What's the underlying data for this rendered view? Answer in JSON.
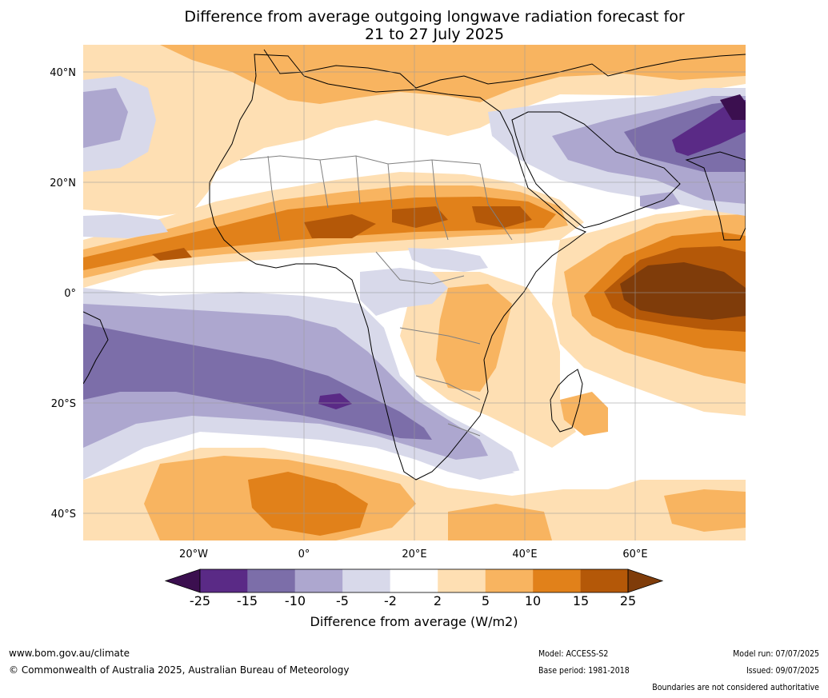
{
  "title_line1": "Difference from average outgoing longwave radiation forecast for",
  "title_line2": "21 to 27 July 2025",
  "lat_ticks": [
    "40°N",
    "20°N",
    "0°",
    "20°S",
    "40°S"
  ],
  "lon_ticks": [
    "20°W",
    "0°",
    "20°E",
    "40°E",
    "60°E"
  ],
  "colorbar": {
    "labels": [
      "-25",
      "-15",
      "-10",
      "-5",
      "-2",
      "2",
      "5",
      "10",
      "15",
      "25"
    ],
    "colors": [
      "#3b0f4f",
      "#5a2a86",
      "#7c6ea9",
      "#ada7cf",
      "#d8d9ea",
      "#ffffff",
      "#fedfb3",
      "#f8b460",
      "#e1811a",
      "#b45808",
      "#7f3c0a"
    ],
    "title": "Difference from average (W/m2)"
  },
  "footer": {
    "url": "www.bom.gov.au/climate",
    "copyright": "© Commonwealth of Australia 2025, Australian Bureau of Meteorology",
    "model": "Model: ACCESS-S2",
    "base_period": "Base period: 1981-2018",
    "model_run": "Model run: 07/07/2025",
    "issued": "Issued: 09/07/2025",
    "boundaries": "Boundaries are not considered authoritative"
  }
}
